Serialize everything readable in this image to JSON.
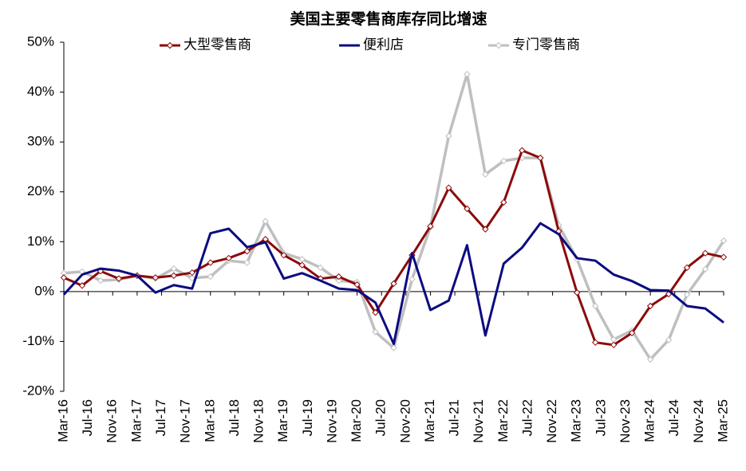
{
  "chart_data": {
    "type": "line",
    "title": "美国主要零售商库存同比增速",
    "categories": [
      "Mar-16",
      null,
      null,
      null,
      "Jul-16",
      null,
      null,
      null,
      "Nov-16",
      null,
      null,
      null,
      "Mar-17",
      null,
      null,
      null,
      "Jul-17",
      null,
      null,
      null,
      "Nov-17",
      null,
      null,
      null,
      "Mar-18",
      null,
      null,
      null,
      "Jul-18",
      null,
      null,
      null,
      "Nov-18",
      null,
      null,
      null,
      "Mar-19",
      null,
      null,
      null,
      "Jul-19",
      null,
      null,
      null,
      "Nov-19",
      null,
      null,
      null,
      "Mar-20",
      null,
      null,
      null,
      "Jul-20",
      null,
      null,
      null,
      "Nov-20",
      null,
      null,
      null,
      "Mar-21",
      null,
      null,
      null,
      "Jul-21",
      null,
      null,
      null,
      "Nov-21",
      null,
      null,
      null,
      "Mar-22",
      null,
      null,
      null,
      "Jul-22",
      null,
      null,
      null,
      "Nov-22",
      null,
      null,
      null,
      "Mar-23",
      null,
      null,
      null,
      "Jul-23",
      null,
      null,
      null,
      "Nov-23",
      null,
      null,
      null,
      "Mar-24",
      null,
      null,
      null,
      "Jul-24",
      null,
      null,
      null,
      "Nov-24",
      null,
      null,
      null,
      "Mar-25"
    ],
    "series": [
      {
        "name": "大型零售商",
        "color": "#8b0a0a",
        "marker": "diamond",
        "values": [
          2.8,
          null,
          null,
          1.2,
          null,
          null,
          4.1,
          null,
          null,
          2.6,
          null,
          null,
          3.2,
          null,
          null,
          2.8,
          null,
          null,
          3.2,
          null,
          null,
          3.8,
          null,
          null,
          5.8,
          null,
          null,
          6.7,
          null,
          null,
          8.1,
          null,
          null,
          10.5,
          null,
          null,
          7.3,
          null,
          null,
          5.3,
          null,
          null,
          2.6,
          null,
          null,
          3.0,
          null,
          null,
          1.4,
          null,
          null,
          -4.2,
          null,
          null,
          1.6,
          null,
          null,
          7.3,
          null,
          null,
          13.1,
          null,
          null,
          20.8,
          null,
          null,
          16.6,
          null,
          null,
          12.5,
          null,
          null,
          17.9,
          null,
          null,
          28.3,
          null,
          null,
          26.8,
          null,
          null,
          12.1,
          null,
          null,
          -0.2,
          null,
          null,
          -10.2,
          null,
          null,
          -10.7,
          null,
          null,
          -8.3,
          null,
          null,
          -2.9,
          null,
          null,
          -0.5,
          null,
          null,
          4.8,
          null,
          null,
          7.7,
          null,
          null,
          6.9
        ]
      },
      {
        "name": "便利店",
        "color": "#0b0b80",
        "marker": "none",
        "values": [
          -0.6,
          null,
          null,
          3.4,
          null,
          null,
          4.6,
          null,
          null,
          4.2,
          null,
          null,
          3.2,
          null,
          null,
          -0.2,
          null,
          null,
          1.3,
          null,
          null,
          0.6,
          null,
          null,
          11.7,
          null,
          null,
          12.6,
          null,
          null,
          8.9,
          null,
          null,
          9.9,
          null,
          null,
          2.6,
          null,
          null,
          3.7,
          null,
          null,
          2.2,
          null,
          null,
          0.6,
          null,
          null,
          0.3,
          null,
          null,
          -2.2,
          null,
          null,
          -10.5,
          null,
          null,
          7.7,
          null,
          null,
          -3.7,
          null,
          null,
          -1.8,
          null,
          null,
          9.3,
          null,
          null,
          -8.8,
          null,
          null,
          5.6,
          null,
          null,
          8.8,
          null,
          null,
          13.7,
          null,
          null,
          11.5,
          null,
          null,
          6.7,
          null,
          null,
          6.2,
          null,
          null,
          3.4,
          null,
          null,
          2.1,
          null,
          null,
          0.3,
          null,
          null,
          0.2,
          null,
          null,
          -2.9,
          null,
          null,
          -3.4,
          null,
          null,
          -6.2
        ]
      },
      {
        "name": "专门零售商",
        "color": "#bfbfbf",
        "marker": "diamond",
        "values": [
          3.7,
          null,
          null,
          4.0,
          null,
          null,
          2.2,
          null,
          null,
          2.4,
          null,
          null,
          3.2,
          null,
          null,
          2.6,
          null,
          null,
          4.6,
          null,
          null,
          2.7,
          null,
          null,
          3.0,
          null,
          null,
          6.2,
          null,
          null,
          5.8,
          null,
          null,
          14.1,
          null,
          null,
          7.7,
          null,
          null,
          6.5,
          null,
          null,
          4.8,
          null,
          null,
          2.2,
          null,
          null,
          1.9,
          null,
          null,
          -8.1,
          null,
          null,
          -11.3,
          null,
          null,
          2.5,
          null,
          null,
          12.9,
          null,
          null,
          31.2,
          null,
          null,
          43.6,
          null,
          null,
          23.5,
          null,
          null,
          26.2,
          null,
          null,
          26.8,
          null,
          null,
          26.8,
          null,
          null,
          13.3,
          null,
          null,
          6.5,
          null,
          null,
          -2.9,
          null,
          null,
          -9.6,
          null,
          null,
          -7.8,
          null,
          null,
          -13.6,
          null,
          null,
          -9.7,
          null,
          null,
          -0.6,
          null,
          null,
          4.5,
          null,
          null,
          10.2
        ]
      }
    ],
    "ylim": [
      -20,
      50
    ],
    "yticks": [
      {
        "value": -20,
        "label": "-20%"
      },
      {
        "value": -10,
        "label": "-10%"
      },
      {
        "value": 0,
        "label": "0%"
      },
      {
        "value": 10,
        "label": "10%"
      },
      {
        "value": 20,
        "label": "20%"
      },
      {
        "value": 30,
        "label": "30%"
      },
      {
        "value": 40,
        "label": "40%"
      },
      {
        "value": 50,
        "label": "50%"
      }
    ],
    "negative_tick_color": "#ff0000",
    "grid": false,
    "legend": "top"
  }
}
